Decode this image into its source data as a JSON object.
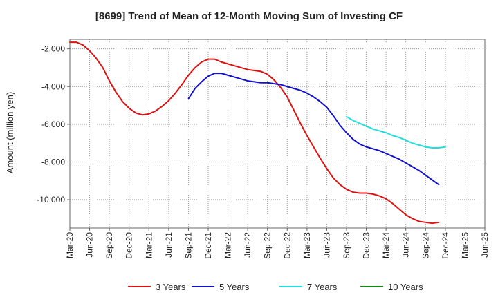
{
  "chart_data": {
    "type": "line",
    "title": "[8699]  Trend of Mean of 12-Month Moving Sum of Investing CF",
    "xlabel": "",
    "ylabel": "Amount (million yen)",
    "ylim": [
      -11500,
      -1500
    ],
    "yticks": [
      -2000,
      -4000,
      -6000,
      -8000,
      -10000
    ],
    "ytick_labels": [
      "-2,000",
      "-4,000",
      "-6,000",
      "-8,000",
      "-10,000"
    ],
    "x_start": "2020-03",
    "x_end": "2025-06",
    "xtick_labels": [
      "Mar-20",
      "Jun-20",
      "Sep-20",
      "Dec-20",
      "Mar-21",
      "Jun-21",
      "Sep-21",
      "Dec-21",
      "Mar-22",
      "Jun-22",
      "Sep-22",
      "Dec-22",
      "Mar-23",
      "Jun-23",
      "Sep-23",
      "Dec-23",
      "Mar-24",
      "Jun-24",
      "Sep-24",
      "Dec-24",
      "Mar-25",
      "Jun-25"
    ],
    "grid": true,
    "legend_position": "bottom",
    "series": [
      {
        "name": "3 Years",
        "color": "#dd1111",
        "start_index": 0,
        "values": [
          -1650,
          -1650,
          -1800,
          -2100,
          -2500,
          -3000,
          -3700,
          -4300,
          -4800,
          -5150,
          -5400,
          -5500,
          -5450,
          -5300,
          -5050,
          -4750,
          -4350,
          -3900,
          -3400,
          -3000,
          -2700,
          -2550,
          -2550,
          -2700,
          -2800,
          -2900,
          -3000,
          -3100,
          -3150,
          -3200,
          -3350,
          -3650,
          -4050,
          -4550,
          -5250,
          -5950,
          -6600,
          -7200,
          -7800,
          -8350,
          -8850,
          -9200,
          -9450,
          -9600,
          -9650,
          -9650,
          -9700,
          -9800,
          -9950,
          -10200,
          -10500,
          -10800,
          -11000,
          -11150,
          -11200,
          -11250,
          -11200
        ]
      },
      {
        "name": "5 Years",
        "color": "#1111cc",
        "start_index": 18,
        "values": [
          -4650,
          -4100,
          -3750,
          -3450,
          -3300,
          -3300,
          -3400,
          -3500,
          -3600,
          -3700,
          -3750,
          -3800,
          -3800,
          -3850,
          -3900,
          -4000,
          -4100,
          -4200,
          -4350,
          -4550,
          -4800,
          -5100,
          -5550,
          -6050,
          -6450,
          -6800,
          -7050,
          -7200,
          -7300,
          -7400,
          -7550,
          -7700,
          -7850,
          -8050,
          -8250,
          -8450,
          -8700,
          -8950,
          -9200
        ]
      },
      {
        "name": "7 Years",
        "color": "#22dddd",
        "start_index": 42,
        "values": [
          -5600,
          -5800,
          -5950,
          -6100,
          -6250,
          -6350,
          -6450,
          -6600,
          -6700,
          -6850,
          -7000,
          -7100,
          -7200,
          -7250,
          -7250,
          -7200
        ]
      },
      {
        "name": "10 Years",
        "color": "#118811",
        "start_index": 0,
        "values": []
      }
    ]
  }
}
